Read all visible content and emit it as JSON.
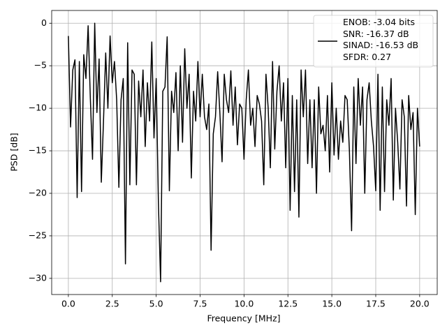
{
  "chart_data": {
    "type": "line",
    "xlabel": "Frequency [MHz]",
    "ylabel": "PSD [dB]",
    "x": [
      0,
      0.125,
      0.25,
      0.375,
      0.5,
      0.625,
      0.75,
      0.875,
      1,
      1.125,
      1.25,
      1.375,
      1.5,
      1.625,
      1.75,
      1.875,
      2,
      2.125,
      2.25,
      2.375,
      2.5,
      2.625,
      2.75,
      2.875,
      3,
      3.125,
      3.25,
      3.375,
      3.5,
      3.625,
      3.75,
      3.875,
      4,
      4.125,
      4.25,
      4.375,
      4.5,
      4.625,
      4.75,
      4.875,
      5,
      5.125,
      5.25,
      5.375,
      5.5,
      5.625,
      5.75,
      5.875,
      6,
      6.125,
      6.25,
      6.375,
      6.5,
      6.625,
      6.75,
      6.875,
      7,
      7.125,
      7.25,
      7.375,
      7.5,
      7.625,
      7.75,
      7.875,
      8,
      8.125,
      8.25,
      8.375,
      8.5,
      8.625,
      8.75,
      8.875,
      9,
      9.125,
      9.25,
      9.375,
      9.5,
      9.625,
      9.75,
      9.875,
      10,
      10.125,
      10.25,
      10.375,
      10.5,
      10.625,
      10.75,
      10.875,
      11,
      11.125,
      11.25,
      11.375,
      11.5,
      11.625,
      11.75,
      11.875,
      12,
      12.125,
      12.25,
      12.375,
      12.5,
      12.625,
      12.75,
      12.875,
      13,
      13.125,
      13.25,
      13.375,
      13.5,
      13.625,
      13.75,
      13.875,
      14,
      14.125,
      14.25,
      14.375,
      14.5,
      14.625,
      14.75,
      14.875,
      15,
      15.125,
      15.25,
      15.375,
      15.5,
      15.625,
      15.75,
      15.875,
      16,
      16.125,
      16.25,
      16.375,
      16.5,
      16.625,
      16.75,
      16.875,
      17,
      17.125,
      17.25,
      17.375,
      17.5,
      17.625,
      17.75,
      17.875,
      18,
      18.125,
      18.25,
      18.375,
      18.5,
      18.625,
      18.75,
      18.875,
      19,
      19.125,
      19.25,
      19.375,
      19.5,
      19.625,
      19.75,
      19.875,
      20
    ],
    "series": [
      {
        "name": "ENOB: -3.04 bits\nSNR: -16.37 dB\nSINAD: -16.53 dB\nSFDR: 0.27",
        "color": "#000000",
        "values": [
          -1.5,
          -12.2,
          -5.5,
          -4.3,
          -20.5,
          -4.5,
          -19.8,
          -3.7,
          -6.5,
          -0.3,
          -8.8,
          -16,
          0,
          -10.5,
          -4.2,
          -18.7,
          -11.5,
          -3.5,
          -10,
          -1.5,
          -7,
          -4.5,
          -9,
          -19.3,
          -9,
          -6.5,
          -28.3,
          -2.3,
          -19,
          -5.5,
          -6,
          -19,
          -6.8,
          -11,
          -5.5,
          -14.5,
          -7,
          -11.5,
          -2.2,
          -13.5,
          -6.5,
          -21,
          -30.4,
          -8,
          -7.5,
          -1.6,
          -19.7,
          -8,
          -10.5,
          -5.8,
          -15,
          -5,
          -14,
          -3,
          -10,
          -6,
          -18.2,
          -8,
          -11.5,
          -4.5,
          -11,
          -6,
          -11,
          -12.5,
          -9.5,
          -26.7,
          -13,
          -11,
          -5.7,
          -10.5,
          -16.3,
          -6,
          -9,
          -10.5,
          -5.6,
          -12,
          -7.5,
          -14.3,
          -9.5,
          -10,
          -16,
          -9,
          -5.5,
          -12,
          -10,
          -14.5,
          -8.5,
          -9.5,
          -11.5,
          -19,
          -6,
          -10,
          -17,
          -4.5,
          -14.8,
          -8,
          -5,
          -11.5,
          -7,
          -17,
          -6.5,
          -22,
          -8.5,
          -19.8,
          -9,
          -22.8,
          -5.5,
          -11,
          -5.5,
          -16.5,
          -9,
          -17,
          -9,
          -20,
          -7.5,
          -13,
          -12,
          -15,
          -8.5,
          -17.5,
          -7,
          -15.5,
          -10,
          -16,
          -11.5,
          -14,
          -8.5,
          -9,
          -15,
          -24.4,
          -7.5,
          -16.5,
          -6.5,
          -12,
          -7.5,
          -20,
          -9,
          -7,
          -11.5,
          -14.5,
          -19.7,
          -6,
          -22,
          -7.5,
          -19.8,
          -9,
          -12,
          -6.5,
          -20.8,
          -10,
          -14,
          -19.5,
          -9,
          -11,
          -21.5,
          -8.5,
          -12.5,
          -10.5,
          -22.5,
          -10,
          -14.5
        ]
      }
    ],
    "xlim": [
      -0.95,
      21
    ],
    "ylim": [
      -31.9,
      1.5
    ],
    "xticks": [
      {
        "value": 0,
        "label": "0.0"
      },
      {
        "value": 2.5,
        "label": "2.5"
      },
      {
        "value": 5,
        "label": "5.0"
      },
      {
        "value": 7.5,
        "label": "7.5"
      },
      {
        "value": 10,
        "label": "10.0"
      },
      {
        "value": 12.5,
        "label": "12.5"
      },
      {
        "value": 15,
        "label": "15.0"
      },
      {
        "value": 17.5,
        "label": "17.5"
      },
      {
        "value": 20,
        "label": "20.0"
      }
    ],
    "yticks": [
      {
        "value": -30,
        "label": "−30"
      },
      {
        "value": -25,
        "label": "−25"
      },
      {
        "value": -20,
        "label": "−20"
      },
      {
        "value": -15,
        "label": "−15"
      },
      {
        "value": -10,
        "label": "−10"
      },
      {
        "value": -5,
        "label": "−5"
      },
      0
    ],
    "grid": true,
    "legend": "upper right"
  }
}
